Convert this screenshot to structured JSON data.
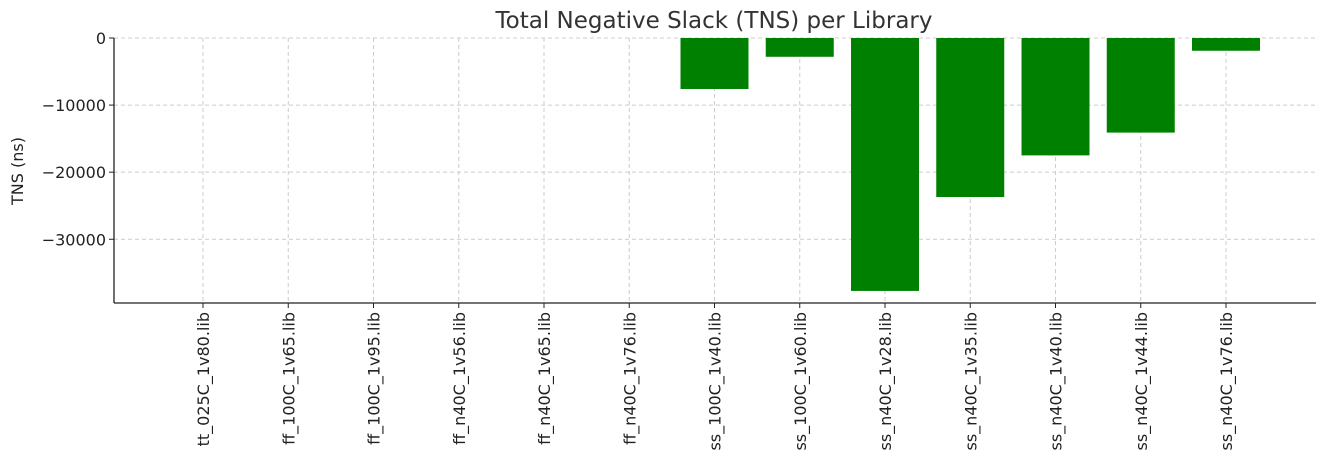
{
  "chart_data": {
    "type": "bar",
    "title": "Total Negative Slack (TNS) per Library",
    "xlabel": "",
    "ylabel": "TNS (ns)",
    "ylim": [
      -39500,
      0
    ],
    "yticks": [
      0,
      -10000,
      -20000,
      -30000
    ],
    "ytick_labels": [
      "0",
      "−10000",
      "−20000",
      "−30000"
    ],
    "grid": true,
    "bar_color": "#008000",
    "categories": [
      "tt_025C_1v80.lib",
      "ff_100C_1v65.lib",
      "ff_100C_1v95.lib",
      "ff_n40C_1v56.lib",
      "ff_n40C_1v65.lib",
      "ff_n40C_1v76.lib",
      "ss_100C_1v40.lib",
      "ss_100C_1v60.lib",
      "ss_n40C_1v28.lib",
      "ss_n40C_1v35.lib",
      "ss_n40C_1v40.lib",
      "ss_n40C_1v44.lib",
      "ss_n40C_1v76.lib"
    ],
    "values": [
      0,
      0,
      0,
      0,
      0,
      0,
      -7600,
      -2800,
      -37700,
      -23700,
      -17500,
      -14100,
      -1900
    ]
  }
}
